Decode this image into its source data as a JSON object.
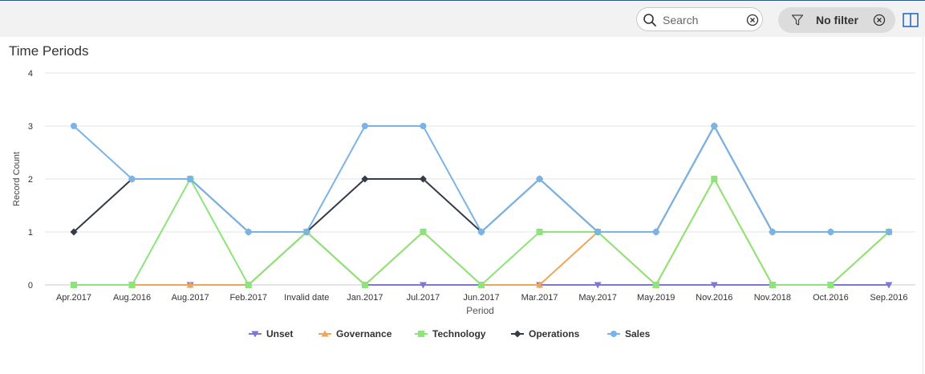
{
  "toolbar": {
    "search_placeholder": "Search",
    "search_value": "",
    "filter_label": "No filter"
  },
  "chart_data": {
    "type": "line",
    "title": "Time Periods",
    "xlabel": "Period",
    "ylabel": "Record Count",
    "ylim": [
      0,
      4
    ],
    "yticks": [
      0,
      1,
      2,
      3,
      4
    ],
    "grid": true,
    "legend_position": "bottom",
    "categories": [
      "Apr.2017",
      "Aug.2016",
      "Aug.2017",
      "Feb.2017",
      "Invalid date",
      "Jan.2017",
      "Jul.2017",
      "Jun.2017",
      "Mar.2017",
      "May.2017",
      "May.2019",
      "Nov.2016",
      "Nov.2018",
      "Oct.2016",
      "Sep.2016"
    ],
    "series": [
      {
        "name": "Unset",
        "color": "#7b78d6",
        "marker": "triangle-down",
        "values": [
          0,
          0,
          0,
          0,
          1,
          0,
          0,
          0,
          0,
          0,
          0,
          0,
          0,
          0,
          0
        ]
      },
      {
        "name": "Governance",
        "color": "#f0a65a",
        "marker": "triangle-up",
        "values": [
          0,
          0,
          0,
          0,
          1,
          0,
          1,
          0,
          0,
          1,
          0,
          2,
          0,
          0,
          1
        ]
      },
      {
        "name": "Technology",
        "color": "#8ee47a",
        "marker": "square",
        "values": [
          0,
          0,
          2,
          0,
          1,
          0,
          1,
          0,
          1,
          1,
          0,
          2,
          0,
          0,
          1
        ]
      },
      {
        "name": "Operations",
        "color": "#353b48",
        "marker": "diamond",
        "values": [
          1,
          2,
          2,
          1,
          1,
          2,
          2,
          1,
          2,
          1,
          1,
          3,
          1,
          1,
          1
        ]
      },
      {
        "name": "Sales",
        "color": "#7ab4e6",
        "marker": "circle",
        "values": [
          3,
          2,
          2,
          1,
          1,
          3,
          3,
          1,
          2,
          1,
          1,
          3,
          1,
          1,
          1
        ]
      }
    ]
  }
}
